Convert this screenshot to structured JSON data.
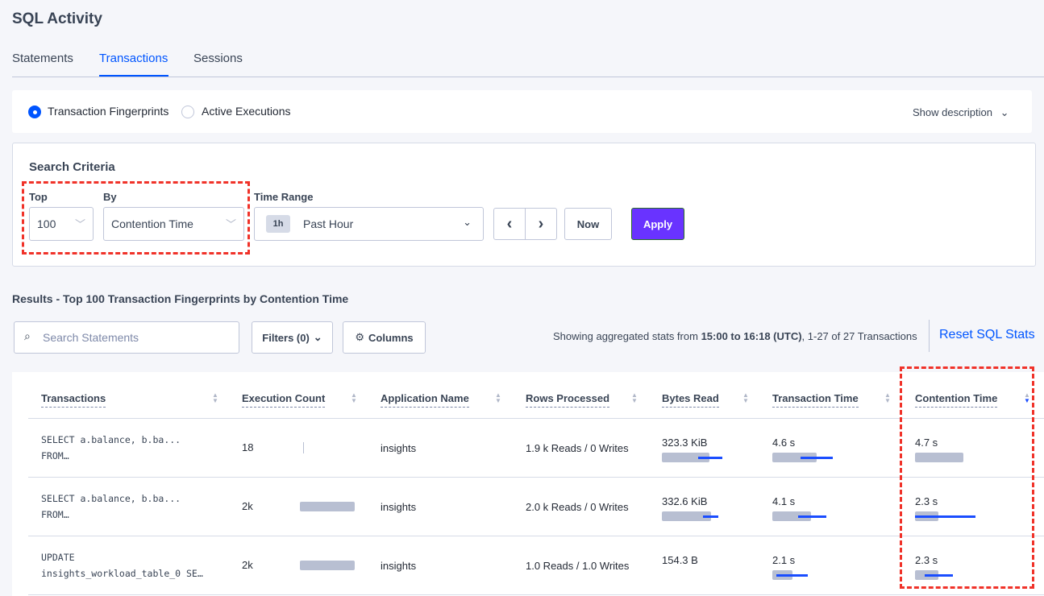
{
  "page": {
    "title": "SQL Activity"
  },
  "tabs": [
    {
      "label": "Statements"
    },
    {
      "label": "Transactions",
      "active": true
    },
    {
      "label": "Sessions"
    }
  ],
  "mode": {
    "options": [
      "Transaction Fingerprints",
      "Active Executions"
    ],
    "selected": "Transaction Fingerprints",
    "show_description": "Show description"
  },
  "criteria": {
    "title": "Search Criteria",
    "top_label": "Top",
    "top_value": "100",
    "by_label": "By",
    "by_value": "Contention Time",
    "time_range_label": "Time Range",
    "time_badge": "1h",
    "time_value": "Past Hour",
    "now": "Now",
    "apply": "Apply"
  },
  "results": {
    "title": "Results - Top 100 Transaction Fingerprints by Contention Time",
    "search_placeholder": "Search Statements",
    "filters": "Filters (0)",
    "columns": "Columns",
    "stats_prefix": "Showing aggregated stats from ",
    "stats_range": "15:00 to 16:18 (UTC)",
    "stats_suffix": ", 1-27 of 27 Transactions",
    "reset": "Reset SQL Stats"
  },
  "colors": {
    "accent": "#0055ff",
    "apply": "#6933ff",
    "highlight": "#f03229"
  },
  "table": {
    "columns": [
      "Transactions",
      "Execution Count",
      "Application Name",
      "Rows Processed",
      "Bytes Read",
      "Transaction Time",
      "Contention Time"
    ],
    "sorted_column": "Contention Time",
    "sort_direction": "descending",
    "rows": [
      {
        "txn1": "SELECT a.balance, b.ba...",
        "txn2": "FROM…",
        "exec": "18",
        "app": "insights",
        "rows": "1.9 k Reads / 0 Writes",
        "bytes": "323.3 KiB",
        "time": "4.6 s",
        "contention": "4.7 s"
      },
      {
        "txn1": "SELECT a.balance, b.ba...",
        "txn2": "FROM…",
        "exec": "2k",
        "app": "insights",
        "rows": "2.0 k Reads / 0 Writes",
        "bytes": "332.6 KiB",
        "time": "4.1 s",
        "contention": "2.3 s"
      },
      {
        "txn1": "UPDATE",
        "txn2": "insights_workload_table_0 SE…",
        "exec": "2k",
        "app": "insights",
        "rows": "1.0 Reads / 1.0 Writes",
        "bytes": "154.3 B",
        "time": "2.1 s",
        "contention": "2.3 s"
      }
    ]
  }
}
